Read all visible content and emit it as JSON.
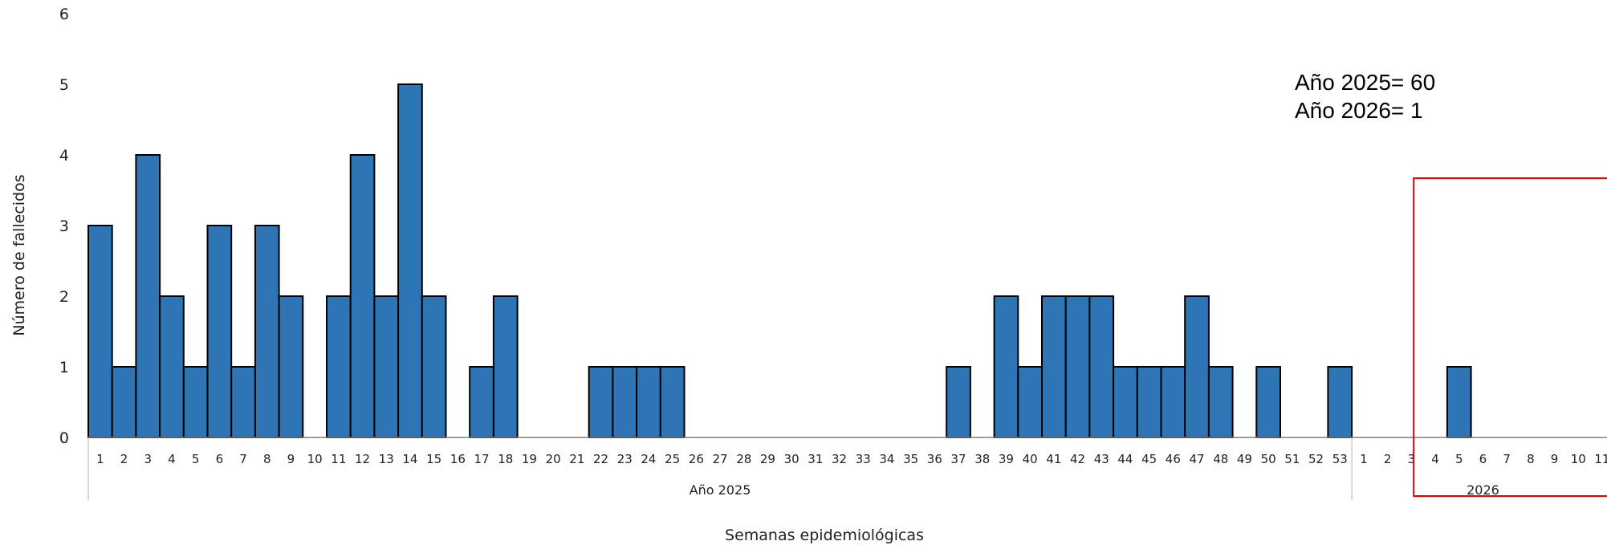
{
  "chart_data": {
    "type": "bar",
    "title": "",
    "xlabel": "Semanas epidemiológicas",
    "ylabel": "Número de fallecidos",
    "ylim": [
      0,
      6
    ],
    "yticks": [
      "0",
      "1",
      "2",
      "3",
      "4",
      "5",
      "6"
    ],
    "groups": [
      {
        "label": "Año 2025",
        "weeks": [
          "1",
          "2",
          "3",
          "4",
          "5",
          "6",
          "7",
          "8",
          "9",
          "10",
          "11",
          "12",
          "13",
          "14",
          "15",
          "16",
          "17",
          "18",
          "19",
          "20",
          "21",
          "22",
          "23",
          "24",
          "25",
          "26",
          "27",
          "28",
          "29",
          "30",
          "31",
          "32",
          "33",
          "34",
          "35",
          "36",
          "37",
          "38",
          "39",
          "40",
          "41",
          "42",
          "43",
          "44",
          "45",
          "46",
          "47",
          "48",
          "49",
          "50",
          "51",
          "52",
          "53"
        ],
        "values": [
          3,
          1,
          4,
          2,
          1,
          3,
          1,
          3,
          2,
          0,
          2,
          4,
          2,
          5,
          2,
          0,
          1,
          2,
          0,
          0,
          0,
          1,
          1,
          1,
          1,
          0,
          0,
          0,
          0,
          0,
          0,
          0,
          0,
          0,
          0,
          0,
          1,
          0,
          2,
          1,
          2,
          2,
          2,
          1,
          1,
          1,
          2,
          1,
          0,
          1,
          0,
          0,
          1
        ]
      },
      {
        "label": "2026",
        "weeks": [
          "1",
          "2",
          "3",
          "4",
          "5",
          "6",
          "7",
          "8",
          "9",
          "10",
          "11"
        ],
        "values": [
          0,
          0,
          0,
          0,
          1,
          0,
          0,
          0,
          0,
          0,
          0
        ]
      }
    ],
    "bar_color": "#2E75B6",
    "grid": false,
    "legend": "none",
    "highlight_box": {
      "color": "#E00000",
      "from_group": "2026",
      "from_week": "4"
    }
  },
  "annotations": [
    "Año 2025= 60",
    "Año 2026= 1"
  ]
}
